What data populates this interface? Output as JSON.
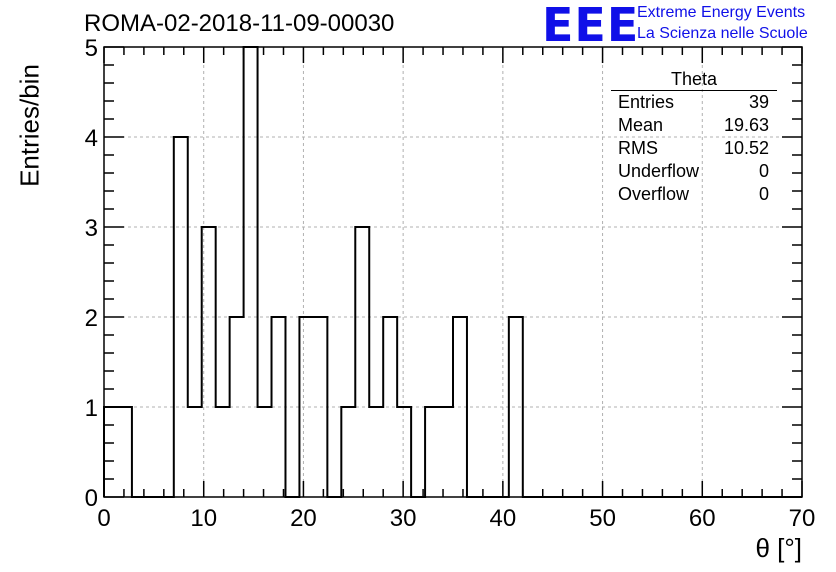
{
  "header": {
    "title": "ROMA-02-2018-11-09-00030",
    "logo_text": "EEE",
    "logo_line1": "Extreme Energy Events",
    "logo_line2": "La Scienza nelle Scuole",
    "logo_color": "#1010e8"
  },
  "stats": {
    "title": "Theta",
    "rows": [
      {
        "label": "Entries",
        "value": "39"
      },
      {
        "label": "Mean",
        "value": "19.63"
      },
      {
        "label": "RMS",
        "value": "10.52"
      },
      {
        "label": "Underflow",
        "value": "0"
      },
      {
        "label": "Overflow",
        "value": "0"
      }
    ]
  },
  "chart_data": {
    "type": "bar",
    "histogram": true,
    "xlabel": "θ [°]",
    "ylabel": "Entries/bin",
    "xlim": [
      0,
      70
    ],
    "ylim": [
      0,
      5
    ],
    "xticks": [
      0,
      10,
      20,
      30,
      40,
      50,
      60,
      70
    ],
    "yticks": [
      0,
      1,
      2,
      3,
      4,
      5
    ],
    "grid": true,
    "bin_width": 1.4,
    "values": [
      1,
      1,
      0,
      0,
      0,
      4,
      1,
      3,
      1,
      2,
      5,
      1,
      2,
      0,
      2,
      2,
      0,
      1,
      3,
      1,
      2,
      1,
      0,
      1,
      1,
      2,
      0,
      0,
      0,
      2,
      0,
      0,
      0,
      0,
      0,
      0,
      0,
      0,
      0,
      0,
      0,
      0,
      0,
      0,
      0,
      0,
      0,
      0,
      0,
      0
    ],
    "line_color": "#000000",
    "grid_color": "#b0b0b0"
  }
}
